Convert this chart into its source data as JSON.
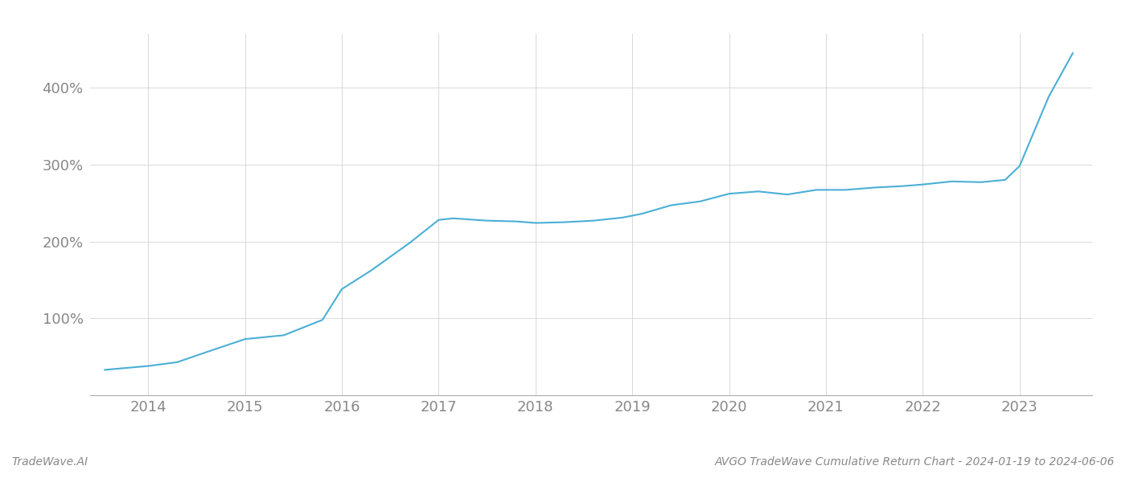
{
  "x_years": [
    2013.55,
    2014.0,
    2014.3,
    2014.6,
    2015.0,
    2015.4,
    2015.8,
    2016.0,
    2016.3,
    2016.7,
    2017.0,
    2017.15,
    2017.5,
    2017.8,
    2018.0,
    2018.3,
    2018.6,
    2018.9,
    2019.1,
    2019.4,
    2019.7,
    2020.0,
    2020.3,
    2020.6,
    2020.9,
    2021.2,
    2021.5,
    2021.8,
    2022.0,
    2022.3,
    2022.6,
    2022.85,
    2023.0,
    2023.3,
    2023.55
  ],
  "y_values": [
    33,
    38,
    43,
    56,
    73,
    78,
    98,
    138,
    162,
    198,
    228,
    230,
    227,
    226,
    224,
    225,
    227,
    231,
    236,
    247,
    252,
    262,
    265,
    261,
    267,
    267,
    270,
    272,
    274,
    278,
    277,
    280,
    298,
    388,
    445
  ],
  "line_color": "#4bafd6",
  "line_width": 1.5,
  "background_color": "#ffffff",
  "grid_color": "#d0d0d0",
  "grid_alpha": 0.8,
  "ytick_labels": [
    "100%",
    "200%",
    "300%",
    "400%"
  ],
  "ytick_values": [
    100,
    200,
    300,
    400
  ],
  "xtick_labels": [
    "2014",
    "2015",
    "2016",
    "2017",
    "2018",
    "2019",
    "2020",
    "2021",
    "2022",
    "2023"
  ],
  "xtick_values": [
    2014,
    2015,
    2016,
    2017,
    2018,
    2019,
    2020,
    2021,
    2022,
    2023
  ],
  "xlim": [
    2013.4,
    2023.75
  ],
  "ylim": [
    0,
    470
  ],
  "watermark_left": "TradeWave.AI",
  "watermark_right": "AVGO TradeWave Cumulative Return Chart - 2024-01-19 to 2024-06-06",
  "watermark_fontsize": 10,
  "tick_fontsize": 13,
  "spine_color": "#aaaaaa",
  "text_color": "#888888"
}
